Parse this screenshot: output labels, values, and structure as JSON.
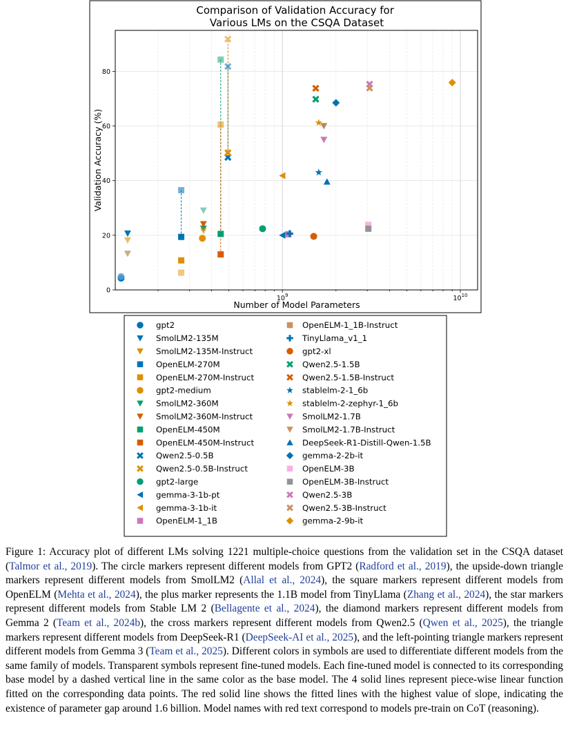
{
  "chart_data": {
    "type": "scatter",
    "title": "Comparison of Validation Accuracy for\nVarious LMs on the CSQA Dataset",
    "xlabel": "Number of Model Parameters",
    "ylabel": "Validation Accuracy (%)",
    "x_scale": "log",
    "xlim": [
      115000000,
      12500000000
    ],
    "ylim": [
      0,
      95
    ],
    "x_ticks": [
      {
        "value": 1000000000,
        "base": "10",
        "exp": "9"
      },
      {
        "value": 10000000000,
        "base": "10",
        "exp": "10"
      }
    ],
    "y_ticks": [
      0,
      20,
      40,
      60,
      80
    ],
    "grid": true,
    "legend_position": "below",
    "series": [
      {
        "name": "gpt2",
        "marker": "circle",
        "color": "#0173b2",
        "opacity": 1,
        "x": 124000000,
        "y": 4.3
      },
      {
        "name": "gpt2",
        "marker": "circle",
        "color": "#56a0d3",
        "opacity": 0.8,
        "x": 124000000,
        "y": 4.9
      },
      {
        "name": "SmolLM2-135M",
        "marker": "tri_down",
        "color": "#0173b2",
        "opacity": 1,
        "x": 135000000,
        "y": 20.7
      },
      {
        "name": "SmolLM2-135M-Instruct",
        "marker": "tri_down",
        "color": "#de8f05",
        "opacity": 0.6,
        "x": 135000000,
        "y": 18.2
      },
      {
        "name": "SmolLM2-135M-Instruct",
        "marker": "tri_down",
        "color": "#b08a5a",
        "opacity": 0.7,
        "x": 135000000,
        "y": 13.3
      },
      {
        "name": "OpenELM-270M",
        "marker": "square",
        "color": "#0173b2",
        "opacity": 1,
        "x": 270000000,
        "y": 19.4,
        "base_of": 36.5
      },
      {
        "name": "OpenELM-270M-Instruct",
        "marker": "square",
        "color": "#0173b2",
        "opacity": 0.55,
        "x": 270000000,
        "y": 36.5
      },
      {
        "name": "OpenELM-270M-Instruct",
        "marker": "square",
        "color": "#de8f05",
        "opacity": 1,
        "x": 270000000,
        "y": 10.8
      },
      {
        "name": "OpenELM-270M-Instruct",
        "marker": "square",
        "color": "#de8f05",
        "opacity": 0.5,
        "x": 270000000,
        "y": 6.3
      },
      {
        "name": "gpt2-medium",
        "marker": "circle",
        "color": "#de8f05",
        "opacity": 1,
        "x": 355000000,
        "y": 18.9
      },
      {
        "name": "SmolLM2-360M",
        "marker": "tri_down",
        "color": "#029e73",
        "opacity": 1,
        "x": 360000000,
        "y": 22.5
      },
      {
        "name": "SmolLM2-360M",
        "marker": "tri_down",
        "color": "#029e73",
        "opacity": 0.5,
        "x": 360000000,
        "y": 29.1
      },
      {
        "name": "SmolLM2-360M-Instruct",
        "marker": "tri_down",
        "color": "#d55e00",
        "opacity": 1,
        "x": 360000000,
        "y": 24.1
      },
      {
        "name": "SmolLM2-360M-Instruct",
        "marker": "tri_down",
        "color": "#de8f05",
        "opacity": 0.6,
        "x": 360000000,
        "y": 21.5
      },
      {
        "name": "OpenELM-450M",
        "marker": "square",
        "color": "#029e73",
        "opacity": 1,
        "x": 450000000,
        "y": 20.5,
        "base_of": 84.3
      },
      {
        "name": "OpenELM-450M",
        "marker": "square",
        "color": "#029e73",
        "opacity": 0.5,
        "x": 450000000,
        "y": 84.3
      },
      {
        "name": "OpenELM-450M-Instruct",
        "marker": "square",
        "color": "#d55e00",
        "opacity": 1,
        "x": 450000000,
        "y": 13.0,
        "base_of": 60.5
      },
      {
        "name": "OpenELM-450M-Instruct",
        "marker": "square",
        "color": "#de8f05",
        "opacity": 0.55,
        "x": 450000000,
        "y": 60.5
      },
      {
        "name": "Qwen2.5-0.5B",
        "marker": "x",
        "color": "#0173b2",
        "opacity": 1,
        "x": 494000000,
        "y": 48.5,
        "base_of": 81.8
      },
      {
        "name": "Qwen2.5-0.5B",
        "marker": "x",
        "color": "#0173b2",
        "opacity": 0.55,
        "x": 494000000,
        "y": 81.8
      },
      {
        "name": "Qwen2.5-0.5B-Instruct",
        "marker": "x",
        "color": "#de8f05",
        "opacity": 1,
        "x": 494000000,
        "y": 50.2,
        "base_of": 91.8
      },
      {
        "name": "Qwen2.5-0.5B-Instruct",
        "marker": "x",
        "color": "#de8f05",
        "opacity": 0.55,
        "x": 494000000,
        "y": 91.8
      },
      {
        "name": "gpt2-large",
        "marker": "circle",
        "color": "#029e73",
        "opacity": 1,
        "x": 774000000,
        "y": 22.4
      },
      {
        "name": "gemma-3-1b-pt",
        "marker": "tri_left",
        "color": "#0173b2",
        "opacity": 1,
        "x": 1000000000,
        "y": 20.0
      },
      {
        "name": "gemma-3-1b-it",
        "marker": "tri_left",
        "color": "#de8f05",
        "opacity": 1,
        "x": 1000000000,
        "y": 41.8
      },
      {
        "name": "OpenELM-1_1B",
        "marker": "square",
        "color": "#cc78bc",
        "opacity": 1,
        "x": 1080000000,
        "y": 20.4
      },
      {
        "name": "TinyLlama_v1_1",
        "marker": "plus",
        "color": "#0173b2",
        "opacity": 1,
        "x": 1100000000,
        "y": 20.6
      },
      {
        "name": "gpt2-xl",
        "marker": "circle",
        "color": "#d55e00",
        "opacity": 1,
        "x": 1500000000,
        "y": 19.6
      },
      {
        "name": "Qwen2.5-1.5B",
        "marker": "x",
        "color": "#029e73",
        "opacity": 1,
        "x": 1540000000,
        "y": 69.8
      },
      {
        "name": "Qwen2.5-1.5B-Instruct",
        "marker": "x",
        "color": "#d55e00",
        "opacity": 1,
        "x": 1540000000,
        "y": 73.8
      },
      {
        "name": "stablelm-2-1_6b",
        "marker": "star",
        "color": "#0173b2",
        "opacity": 1,
        "x": 1600000000,
        "y": 43.0
      },
      {
        "name": "stablelm-2-zephyr-1_6b",
        "marker": "star",
        "color": "#de8f05",
        "opacity": 1,
        "x": 1600000000,
        "y": 61.2
      },
      {
        "name": "SmolLM2-1.7B",
        "marker": "tri_down",
        "color": "#cc78bc",
        "opacity": 1,
        "x": 1710000000,
        "y": 55.0
      },
      {
        "name": "SmolLM2-1.7B-Instruct",
        "marker": "tri_down",
        "color": "#b08a5a",
        "opacity": 1,
        "x": 1710000000,
        "y": 60.0
      },
      {
        "name": "DeepSeek-R1-Distill-Qwen-1.5B",
        "marker": "tri_up",
        "color": "#0173b2",
        "opacity": 1,
        "x": 1780000000,
        "y": 39.6
      },
      {
        "name": "gemma-2-2b-it",
        "marker": "diamond",
        "color": "#0173b2",
        "opacity": 1,
        "x": 2000000000,
        "y": 68.5
      },
      {
        "name": "OpenELM-3B",
        "marker": "square",
        "color": "#fbafe4",
        "opacity": 1,
        "x": 3040000000,
        "y": 23.8
      },
      {
        "name": "OpenELM-3B-Instruct",
        "marker": "square",
        "color": "#949494",
        "opacity": 1,
        "x": 3040000000,
        "y": 22.4
      },
      {
        "name": "Qwen2.5-3B",
        "marker": "x",
        "color": "#cc78bc",
        "opacity": 1,
        "x": 3090000000,
        "y": 75.3
      },
      {
        "name": "Qwen2.5-3B-Instruct",
        "marker": "x",
        "color": "#ca9161",
        "opacity": 1,
        "x": 3090000000,
        "y": 73.9
      },
      {
        "name": "gemma-2-9b-it",
        "marker": "diamond",
        "color": "#de8f05",
        "opacity": 1,
        "x": 9000000000,
        "y": 75.9
      }
    ],
    "legend": [
      {
        "label": "gpt2",
        "marker": "circle",
        "color": "#0173b2"
      },
      {
        "label": "SmolLM2-135M",
        "marker": "tri_down",
        "color": "#0173b2"
      },
      {
        "label": "SmolLM2-135M-Instruct",
        "marker": "tri_down",
        "color": "#de8f05"
      },
      {
        "label": "OpenELM-270M",
        "marker": "square",
        "color": "#0173b2"
      },
      {
        "label": "OpenELM-270M-Instruct",
        "marker": "square",
        "color": "#de8f05"
      },
      {
        "label": "gpt2-medium",
        "marker": "circle",
        "color": "#de8f05"
      },
      {
        "label": "SmolLM2-360M",
        "marker": "tri_down",
        "color": "#029e73"
      },
      {
        "label": "SmolLM2-360M-Instruct",
        "marker": "tri_down",
        "color": "#d55e00"
      },
      {
        "label": "OpenELM-450M",
        "marker": "square",
        "color": "#029e73"
      },
      {
        "label": "OpenELM-450M-Instruct",
        "marker": "square",
        "color": "#d55e00"
      },
      {
        "label": "Qwen2.5-0.5B",
        "marker": "x",
        "color": "#0173b2"
      },
      {
        "label": "Qwen2.5-0.5B-Instruct",
        "marker": "x",
        "color": "#de8f05"
      },
      {
        "label": "gpt2-large",
        "marker": "circle",
        "color": "#029e73"
      },
      {
        "label": "gemma-3-1b-pt",
        "marker": "tri_left",
        "color": "#0173b2"
      },
      {
        "label": "gemma-3-1b-it",
        "marker": "tri_left",
        "color": "#de8f05"
      },
      {
        "label": "OpenELM-1_1B",
        "marker": "square",
        "color": "#cc78bc"
      },
      {
        "label": "OpenELM-1_1B-Instruct",
        "marker": "square",
        "color": "#ca9161"
      },
      {
        "label": "TinyLlama_v1_1",
        "marker": "plus",
        "color": "#0173b2"
      },
      {
        "label": "gpt2-xl",
        "marker": "circle",
        "color": "#d55e00"
      },
      {
        "label": "Qwen2.5-1.5B",
        "marker": "x",
        "color": "#029e73"
      },
      {
        "label": "Qwen2.5-1.5B-Instruct",
        "marker": "x",
        "color": "#d55e00"
      },
      {
        "label": "stablelm-2-1_6b",
        "marker": "star",
        "color": "#0173b2"
      },
      {
        "label": "stablelm-2-zephyr-1_6b",
        "marker": "star",
        "color": "#de8f05"
      },
      {
        "label": "SmolLM2-1.7B",
        "marker": "tri_down",
        "color": "#cc78bc"
      },
      {
        "label": "SmolLM2-1.7B-Instruct",
        "marker": "tri_down",
        "color": "#ca9161"
      },
      {
        "label": "DeepSeek-R1-Distill-Qwen-1.5B",
        "marker": "tri_up",
        "color": "#0173b2"
      },
      {
        "label": "gemma-2-2b-it",
        "marker": "diamond",
        "color": "#0173b2"
      },
      {
        "label": "OpenELM-3B",
        "marker": "square",
        "color": "#fbafe4"
      },
      {
        "label": "OpenELM-3B-Instruct",
        "marker": "square",
        "color": "#949494"
      },
      {
        "label": "Qwen2.5-3B",
        "marker": "x",
        "color": "#cc78bc"
      },
      {
        "label": "Qwen2.5-3B-Instruct",
        "marker": "x",
        "color": "#ca9161"
      },
      {
        "label": "gemma-2-9b-it",
        "marker": "diamond",
        "color": "#de8f05"
      }
    ]
  },
  "caption": {
    "p1": "Figure 1: Accuracy plot of different LMs solving 1221 multiple-choice questions from the validation set in the CSQA dataset (",
    "c1": "Talmor et al., 2019",
    "p2": "). The circle markers represent different models from GPT2 (",
    "c2": "Radford et al., 2019",
    "p3": "), the upside-down triangle markers represent different models from SmolLM2 (",
    "c3": "Allal et al., 2024",
    "p4": "), the square markers represent different models from OpenELM (",
    "c4": "Mehta et al., 2024",
    "p5": "), the plus marker represents the 1.1B model from TinyLlama (",
    "c5": "Zhang et al., 2024",
    "p6": "), the star markers represent different models from Stable LM 2 (",
    "c6": "Bellagente et al., 2024",
    "p7": "), the diamond markers represent different models from Gemma 2 (",
    "c7": "Team et al., 2024b",
    "p8": "), the cross markers represent different models from Qwen2.5 (",
    "c8": "Qwen et al., 2025",
    "p9": "), the triangle markers represent different models from DeepSeek-R1 (",
    "c9": "DeepSeek-AI et al., 2025",
    "p10": "), and the left-pointing triangle markers represent different models from Gemma 3 (",
    "c10": "Team et al., 2025",
    "p11": "). Different colors in symbols are used to differentiate different models from the same family of models. Transparent symbols represent fine-tuned models. Each fine-tuned model is connected to its corresponding base model by a dashed vertical line in the same color as the base model. The 4 solid lines represent piece-wise linear function fitted on the corresponding data points. The red solid line shows the fitted lines with the highest value of slope, indicating the existence of parameter gap around 1.6 billion. Model names with red text correspond to models pre-train on CoT (reasoning)."
  }
}
